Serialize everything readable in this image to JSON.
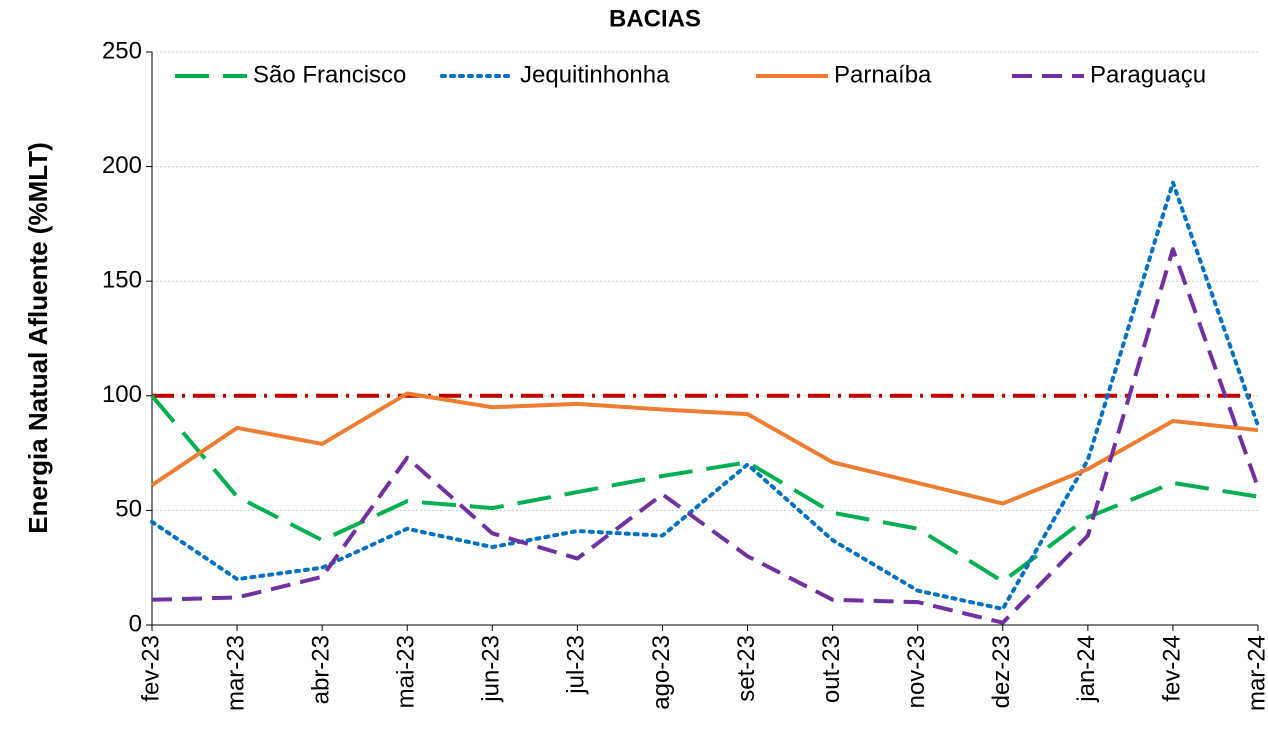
{
  "chart_data": {
    "type": "line",
    "title": "BACIAS",
    "y_label": "Energia Natual Afluente (%MLT)",
    "categories": [
      "fev-23",
      "mar-23",
      "abr-23",
      "mai-23",
      "jun-23",
      "jul-23",
      "ago-23",
      "set-23",
      "out-23",
      "nov-23",
      "dez-23",
      "jan-24",
      "fev-24",
      "mar-24"
    ],
    "series": [
      {
        "name": "São Francisco",
        "color": "#00b050",
        "dash": "long-dash",
        "values": [
          100,
          56,
          37,
          54,
          51,
          58,
          65,
          71,
          49,
          42,
          19,
          47,
          62,
          56
        ]
      },
      {
        "name": "Jequitinhonha",
        "color": "#0070c0",
        "dash": "dot",
        "values": [
          45,
          20,
          25,
          42,
          34,
          41,
          39,
          70,
          37,
          15,
          7,
          72,
          193,
          87
        ]
      },
      {
        "name": "Parnaíba",
        "color": "#ed7d31",
        "dash": "solid",
        "values": [
          61,
          86,
          79,
          101,
          95,
          96.5,
          94,
          92,
          71,
          62,
          53,
          68,
          89,
          85
        ]
      },
      {
        "name": "Paraguaçu",
        "color": "#7030a0",
        "dash": "dash",
        "values": [
          11,
          12,
          21,
          73,
          40,
          29,
          57,
          30,
          11,
          10,
          1,
          39,
          164,
          60
        ]
      }
    ],
    "reference_line": {
      "value": 100,
      "color": "#c00000"
    },
    "ylim": [
      0,
      250
    ],
    "yticks": [
      0,
      50,
      100,
      150,
      200,
      250
    ],
    "grid": true,
    "legend": "top"
  }
}
